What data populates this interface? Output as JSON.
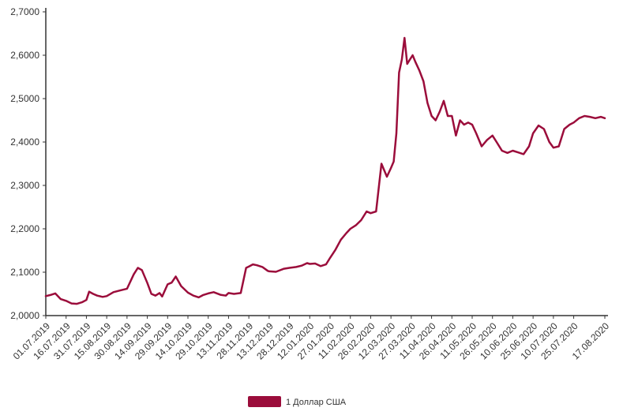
{
  "chart_data": {
    "type": "line",
    "title": "",
    "xlabel": "",
    "ylabel": "",
    "ylim": [
      2.0,
      2.7
    ],
    "y_ticks": [
      "2,0000",
      "2,1000",
      "2,2000",
      "2,3000",
      "2,4000",
      "2,5000",
      "2,6000",
      "2,7000"
    ],
    "x_ticks": [
      "01.07.2019",
      "16.07.2019",
      "31.07.2019",
      "15.08.2019",
      "30.08.2019",
      "14.09.2019",
      "29.09.2019",
      "14.10.2019",
      "29.10.2019",
      "13.11.2019",
      "28.11.2019",
      "13.12.2019",
      "28.12.2019",
      "12.01.2020",
      "27.01.2020",
      "11.02.2020",
      "26.02.2020",
      "12.03.2020",
      "27.03.2020",
      "11.04.2020",
      "26.04.2020",
      "11.05.2020",
      "26.05.2020",
      "10.06.2020",
      "25.06.2020",
      "10.07.2020",
      "25.07.2020",
      "17.08.2020"
    ],
    "grid": false,
    "legend_position": "bottom",
    "colors": {
      "series": "#9b0d3b",
      "axis": "#333333"
    },
    "series": [
      {
        "name": "1 Доллар США",
        "x": [
          "01.07.2019",
          "05.07.2019",
          "08.07.2019",
          "12.07.2019",
          "16.07.2019",
          "20.07.2019",
          "24.07.2019",
          "28.07.2019",
          "31.07.2019",
          "02.08.2019",
          "05.08.2019",
          "08.08.2019",
          "12.08.2019",
          "15.08.2019",
          "20.08.2019",
          "25.08.2019",
          "30.08.2019",
          "04.09.2019",
          "07.09.2019",
          "10.09.2019",
          "14.09.2019",
          "17.09.2019",
          "20.09.2019",
          "23.09.2019",
          "25.09.2019",
          "29.09.2019",
          "02.10.2019",
          "05.10.2019",
          "09.10.2019",
          "14.10.2019",
          "18.10.2019",
          "22.10.2019",
          "25.10.2019",
          "29.10.2019",
          "02.11.2019",
          "07.11.2019",
          "11.11.2019",
          "13.11.2019",
          "17.11.2019",
          "22.11.2019",
          "26.11.2019",
          "28.11.2019",
          "01.12.2019",
          "04.12.2019",
          "08.12.2019",
          "12.12.2019",
          "13.12.2019",
          "18.12.2019",
          "24.12.2019",
          "28.12.2019",
          "02.01.2020",
          "06.01.2020",
          "10.01.2020",
          "12.01.2020",
          "16.01.2020",
          "20.01.2020",
          "24.01.2020",
          "27.01.2020",
          "31.01.2020",
          "04.02.2020",
          "08.02.2020",
          "11.02.2020",
          "15.02.2020",
          "19.02.2020",
          "23.02.2020",
          "26.02.2020",
          "01.03.2020",
          "05.03.2020",
          "09.03.2020",
          "12.03.2020",
          "14.03.2020",
          "16.03.2020",
          "18.03.2020",
          "20.03.2020",
          "22.03.2020",
          "24.03.2020",
          "26.03.2020",
          "28.03.2020",
          "30.03.2020",
          "02.04.2020",
          "05.04.2020",
          "08.04.2020",
          "11.04.2020",
          "14.04.2020",
          "17.04.2020",
          "20.04.2020",
          "23.04.2020",
          "26.04.2020",
          "29.04.2020",
          "02.05.2020",
          "05.05.2020",
          "08.05.2020",
          "11.05.2020",
          "14.05.2020",
          "18.05.2020",
          "22.05.2020",
          "26.05.2020",
          "29.05.2020",
          "02.06.2020",
          "06.06.2020",
          "10.06.2020",
          "14.06.2020",
          "18.06.2020",
          "22.06.2020",
          "25.06.2020",
          "29.06.2020",
          "03.07.2020",
          "07.07.2020",
          "10.07.2020",
          "14.07.2020",
          "18.07.2020",
          "22.07.2020",
          "25.07.2020",
          "29.07.2020",
          "02.08.2020",
          "06.08.2020",
          "10.08.2020",
          "14.08.2020",
          "17.08.2020"
        ],
        "values": [
          2.045,
          2.048,
          2.051,
          2.038,
          2.034,
          2.028,
          2.027,
          2.031,
          2.036,
          2.055,
          2.05,
          2.046,
          2.043,
          2.045,
          2.054,
          2.058,
          2.062,
          2.095,
          2.11,
          2.105,
          2.075,
          2.05,
          2.046,
          2.052,
          2.044,
          2.072,
          2.076,
          2.09,
          2.068,
          2.053,
          2.046,
          2.042,
          2.047,
          2.051,
          2.054,
          2.048,
          2.046,
          2.052,
          2.05,
          2.052,
          2.11,
          2.113,
          2.118,
          2.116,
          2.112,
          2.103,
          2.102,
          2.101,
          2.108,
          2.11,
          2.112,
          2.115,
          2.121,
          2.119,
          2.12,
          2.114,
          2.118,
          2.133,
          2.152,
          2.175,
          2.19,
          2.2,
          2.208,
          2.22,
          2.24,
          2.236,
          2.24,
          2.35,
          2.32,
          2.34,
          2.355,
          2.42,
          2.56,
          2.59,
          2.64,
          2.58,
          2.59,
          2.6,
          2.585,
          2.565,
          2.54,
          2.49,
          2.46,
          2.45,
          2.47,
          2.495,
          2.46,
          2.46,
          2.415,
          2.45,
          2.44,
          2.445,
          2.44,
          2.42,
          2.39,
          2.405,
          2.415,
          2.4,
          2.38,
          2.375,
          2.38,
          2.376,
          2.372,
          2.39,
          2.42,
          2.438,
          2.43,
          2.4,
          2.387,
          2.39,
          2.43,
          2.44,
          2.445,
          2.455,
          2.46,
          2.458,
          2.455,
          2.458,
          2.455
        ]
      }
    ]
  }
}
